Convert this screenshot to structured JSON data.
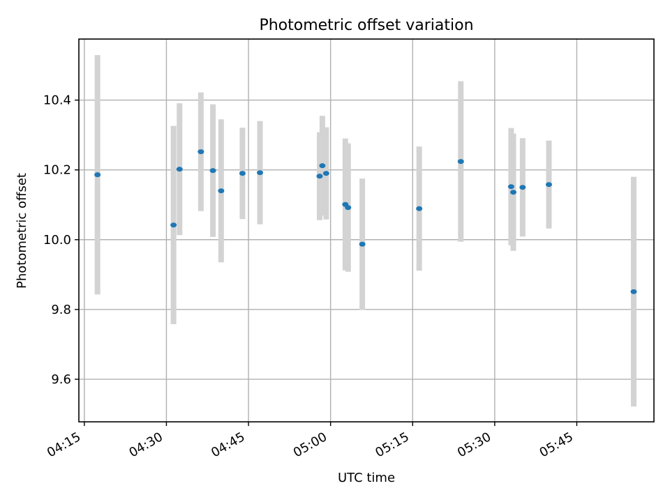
{
  "chart_data": {
    "type": "scatter",
    "title": "Photometric offset variation",
    "xlabel": "UTC time",
    "ylabel": "Photometric offset",
    "x_tick_labels": [
      "04:15",
      "04:30",
      "04:45",
      "05:00",
      "05:15",
      "05:30",
      "05:45"
    ],
    "x_tick_minutes": [
      255,
      270,
      285,
      300,
      315,
      330,
      345
    ],
    "y_ticks": [
      9.6,
      9.8,
      10.0,
      10.2,
      10.4
    ],
    "y_tick_labels": [
      "9.6",
      "9.8",
      "10.0",
      "10.2",
      "10.4"
    ],
    "xlim_minutes": [
      254.0,
      359.1
    ],
    "ylim": [
      9.478,
      10.575
    ],
    "grid": true,
    "marker_color": "#1f77b4",
    "errorbar_color": "#d3d3d3",
    "points": [
      {
        "t": 257.4,
        "y": 10.186,
        "err": 0.343
      },
      {
        "t": 271.3,
        "y": 10.042,
        "err": 0.284
      },
      {
        "t": 272.4,
        "y": 10.202,
        "err": 0.189
      },
      {
        "t": 276.3,
        "y": 10.252,
        "err": 0.17
      },
      {
        "t": 278.5,
        "y": 10.198,
        "err": 0.19
      },
      {
        "t": 280.0,
        "y": 10.14,
        "err": 0.205
      },
      {
        "t": 283.9,
        "y": 10.19,
        "err": 0.131
      },
      {
        "t": 287.1,
        "y": 10.192,
        "err": 0.148
      },
      {
        "t": 298.0,
        "y": 10.182,
        "err": 0.126
      },
      {
        "t": 298.5,
        "y": 10.212,
        "err": 0.143
      },
      {
        "t": 299.2,
        "y": 10.19,
        "err": 0.132
      },
      {
        "t": 302.7,
        "y": 10.101,
        "err": 0.189
      },
      {
        "t": 303.2,
        "y": 10.092,
        "err": 0.184
      },
      {
        "t": 305.8,
        "y": 9.987,
        "err": 0.188
      },
      {
        "t": 316.2,
        "y": 10.089,
        "err": 0.178
      },
      {
        "t": 323.8,
        "y": 10.224,
        "err": 0.23
      },
      {
        "t": 333.0,
        "y": 10.152,
        "err": 0.168
      },
      {
        "t": 333.4,
        "y": 10.136,
        "err": 0.168
      },
      {
        "t": 335.1,
        "y": 10.15,
        "err": 0.141
      },
      {
        "t": 339.9,
        "y": 10.158,
        "err": 0.126
      },
      {
        "t": 355.4,
        "y": 9.851,
        "err": 0.329
      }
    ]
  }
}
